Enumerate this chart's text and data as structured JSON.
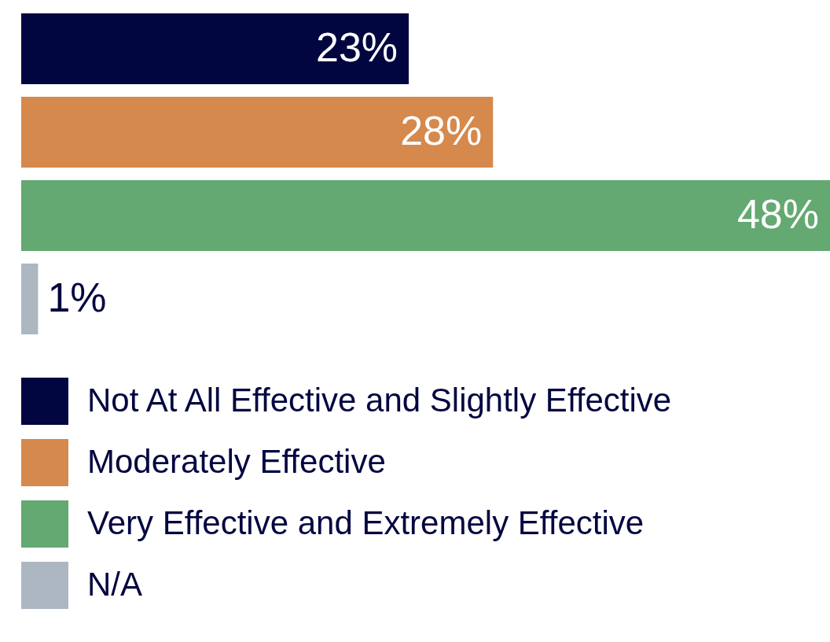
{
  "chart_data": {
    "type": "bar",
    "orientation": "horizontal",
    "stacked": true,
    "categories": [
      null,
      null,
      null,
      null
    ],
    "series": [
      {
        "name": "Not At All Effective and Slightly Effective",
        "color": "#020640",
        "values": [
          23,
          0,
          0,
          0
        ],
        "value_labels": [
          "23%",
          null,
          null,
          null
        ]
      },
      {
        "name": "Moderately Effective",
        "color": "#d6894c",
        "values": [
          0,
          28,
          0,
          0
        ],
        "value_labels": [
          null,
          "28%",
          null,
          null
        ]
      },
      {
        "name": "Very Effective and Extremely Effective",
        "color": "#64a971",
        "values": [
          0,
          0,
          48,
          0
        ],
        "value_labels": [
          null,
          null,
          "48%",
          null
        ]
      },
      {
        "name": "N/A",
        "color": "#adb7c1",
        "values": [
          0,
          0,
          0,
          1
        ],
        "value_labels": [
          null,
          null,
          null,
          "1%"
        ]
      }
    ],
    "legend": "bottom"
  }
}
